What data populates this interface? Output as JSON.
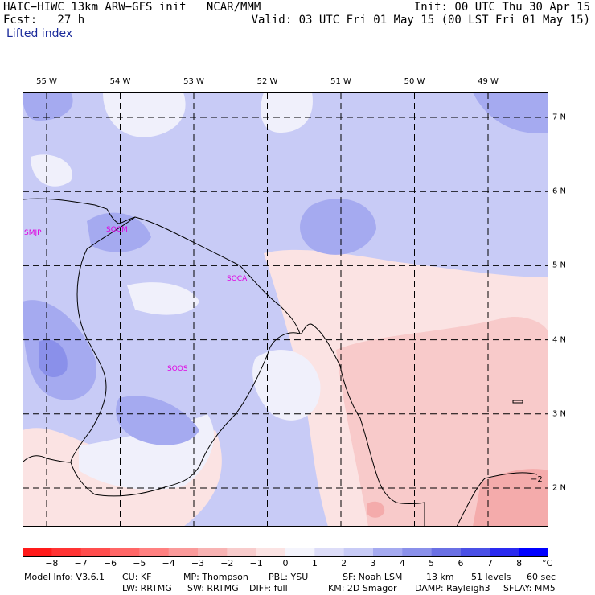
{
  "header": {
    "title": "HAIC−HIWC 13km ARW−GFS init   NCAR/MMM",
    "forecast_label": "Fcst:   27 h",
    "field_name": "Lifted index",
    "init": "Init: 00 UTC Thu 30 Apr 15",
    "valid": "Valid: 03 UTC Fri 01 May 15 (00 LST Fri 01 May 15)"
  },
  "map": {
    "longitudes": [
      {
        "label": "55 W",
        "value": -55
      },
      {
        "label": "54 W",
        "value": -54
      },
      {
        "label": "53 W",
        "value": -53
      },
      {
        "label": "52 W",
        "value": -52
      },
      {
        "label": "51 W",
        "value": -51
      },
      {
        "label": "50 W",
        "value": -50
      },
      {
        "label": "49 W",
        "value": -49
      }
    ],
    "latitudes": [
      {
        "label": "7 N",
        "value": 7
      },
      {
        "label": "6 N",
        "value": 6
      },
      {
        "label": "5 N",
        "value": 5
      },
      {
        "label": "4 N",
        "value": 4
      },
      {
        "label": "3 N",
        "value": 3
      },
      {
        "label": "2 N",
        "value": 2
      }
    ],
    "stations": [
      "SMJP",
      "SOCM",
      "SOCA",
      "SOOS"
    ],
    "contour_label": "−2",
    "colors": {
      "light_blue": "#c8cbf6",
      "medium_blue": "#a5aaf0",
      "dark_blue": "#8a90ea",
      "white": "#f0f0fb",
      "light_pink": "#fbe3e3",
      "pink": "#f8caca",
      "dark_pink": "#f4abab",
      "station_color": "#e000e0"
    }
  },
  "colorbar": {
    "unit": "°C",
    "labels": [
      "−8",
      "−7",
      "−6",
      "−5",
      "−4",
      "−3",
      "−2",
      "−1",
      "0",
      "1",
      "2",
      "3",
      "4",
      "5",
      "6",
      "7",
      "8"
    ],
    "colors": [
      "#ff1a1a",
      "#ff3333",
      "#ff4d4d",
      "#ff6666",
      "#ff8080",
      "#fa9a9a",
      "#f8b3b3",
      "#f8cccc",
      "#fbe3e3",
      "#f4f4fc",
      "#ddddf8",
      "#c8cbf6",
      "#a5aaf0",
      "#8a90ea",
      "#6a70e4",
      "#4a50e6",
      "#2a2af0",
      "#0000ff"
    ]
  },
  "footer": {
    "line1": [
      "Model Info: V3.6.1",
      "CU: KF",
      "MP: Thompson",
      "PBL: YSU",
      "SF: Noah LSM",
      "13 km",
      "51 levels",
      "60 sec"
    ],
    "line2": [
      "LW: RRTMG",
      "SW: RRTMG",
      "DIFF: full",
      "KM: 2D Smagor",
      "DAMP: Rayleigh3",
      "SFLAY: MM5"
    ]
  }
}
